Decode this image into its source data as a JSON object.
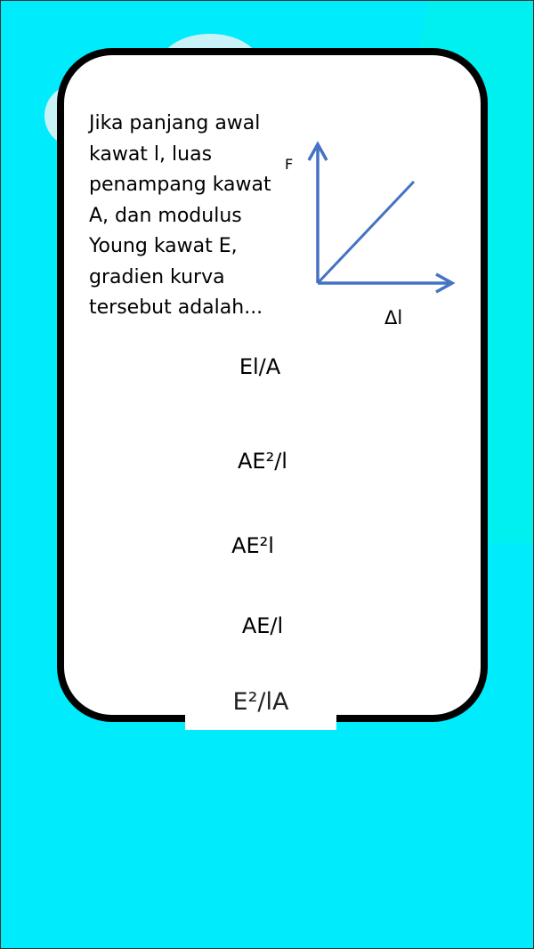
{
  "question": {
    "lines": [
      "Jika panjang awal",
      "kawat l, luas",
      "penampang kawat",
      "A, dan modulus",
      "Young kawat E,",
      "gradien kurva",
      "tersebut adalah..."
    ]
  },
  "graph": {
    "y_axis_label": "F",
    "x_axis_label": "Δl",
    "line_color": "#4472C4"
  },
  "options": [
    {
      "label": "El/A"
    },
    {
      "label": "AE²/l"
    },
    {
      "label": "AE²l"
    },
    {
      "label": "AE/l"
    },
    {
      "label": "E²/lA"
    }
  ],
  "colors": {
    "background": "#00ECFC",
    "card": "#FFFFFF",
    "card_border": "#000000"
  }
}
